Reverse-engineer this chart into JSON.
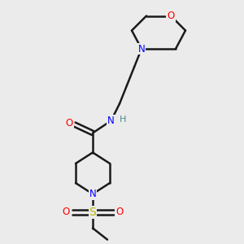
{
  "bg_color": "#ebebeb",
  "bond_color": "#1a1a1a",
  "N_color": "#0000ff",
  "O_color": "#ff0000",
  "S_color": "#b8b800",
  "H_color": "#4a8a8a",
  "line_width": 1.8,
  "figsize": [
    3.0,
    3.0
  ],
  "dpi": 100,
  "xlim": [
    0,
    10
  ],
  "ylim": [
    0,
    10
  ]
}
